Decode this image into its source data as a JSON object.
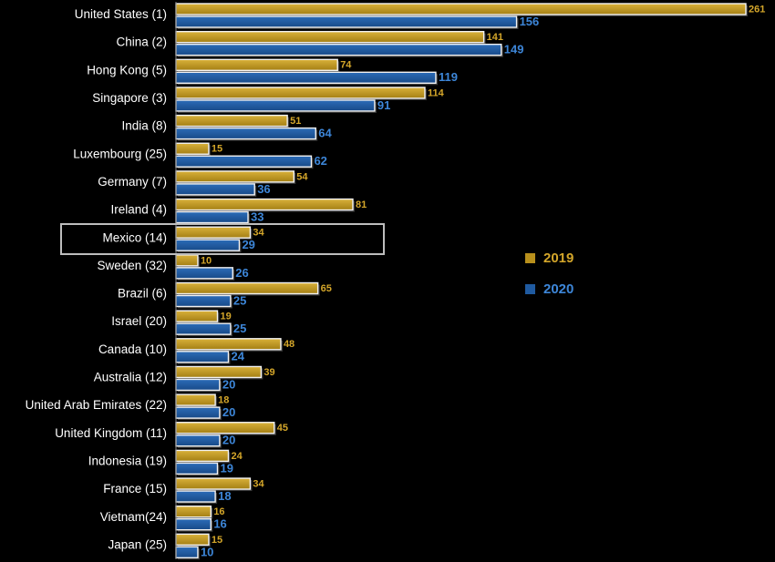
{
  "chart_data": {
    "type": "bar",
    "orientation": "horizontal",
    "categories": [
      "United States (1)",
      "China (2)",
      "Hong Kong (5)",
      "Singapore (3)",
      "India (8)",
      "Luxembourg (25)",
      "Germany (7)",
      "Ireland (4)",
      "Mexico (14)",
      "Sweden (32)",
      "Brazil (6)",
      "Israel (20)",
      "Canada (10)",
      "Australia (12)",
      "United Arab Emirates (22)",
      "United Kingdom (11)",
      "Indonesia (19)",
      "France (15)",
      "Vietnam(24)",
      "Japan (25)"
    ],
    "series": [
      {
        "name": "2019",
        "color": "#b8901c",
        "values": [
          261,
          141,
          74,
          114,
          51,
          15,
          54,
          81,
          34,
          10,
          65,
          19,
          48,
          39,
          18,
          45,
          24,
          34,
          16,
          15
        ]
      },
      {
        "name": "2020",
        "color": "#1f5aa0",
        "values": [
          156,
          149,
          119,
          91,
          64,
          62,
          36,
          33,
          29,
          26,
          25,
          25,
          24,
          20,
          20,
          20,
          19,
          18,
          16,
          10
        ]
      }
    ],
    "xlim": [
      0,
      261
    ],
    "highlighted_category": "Mexico (14)",
    "legend_placement": "right",
    "grid": false,
    "title": "",
    "xlabel": "",
    "ylabel": ""
  }
}
